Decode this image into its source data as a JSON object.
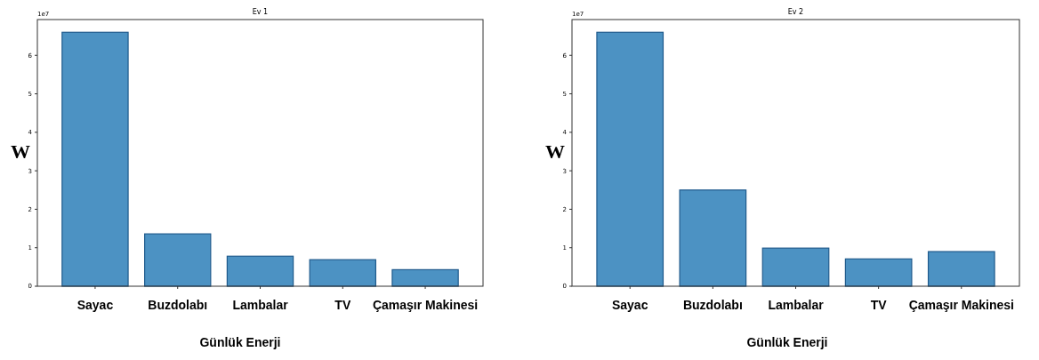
{
  "chart_data": [
    {
      "type": "bar",
      "title": "Ev 1",
      "xlabel": "Günlük Enerji",
      "ylabel": "W",
      "annotations": [
        "1e7"
      ],
      "categories": [
        "Sayac",
        "Buzdolabı",
        "Lambalar",
        "TV",
        "Çamaşır Makinesi"
      ],
      "values": [
        6.6,
        1.36,
        0.78,
        0.69,
        0.43
      ],
      "color": "#4c92c3",
      "ylim": [
        0,
        6.93
      ],
      "yticks": [
        0,
        1,
        2,
        3,
        4,
        5,
        6
      ]
    },
    {
      "type": "bar",
      "title": "Ev 2",
      "xlabel": "Günlük Enerji",
      "ylabel": "W",
      "annotations": [
        "1e7"
      ],
      "categories": [
        "Sayac",
        "Buzdolabı",
        "Lambalar",
        "TV",
        "Çamaşır Makinesi"
      ],
      "values": [
        6.6,
        2.5,
        0.99,
        0.71,
        0.9
      ],
      "color": "#4c92c3",
      "ylim": [
        0,
        6.93
      ],
      "yticks": [
        0,
        1,
        2,
        3,
        4,
        5,
        6
      ]
    }
  ]
}
